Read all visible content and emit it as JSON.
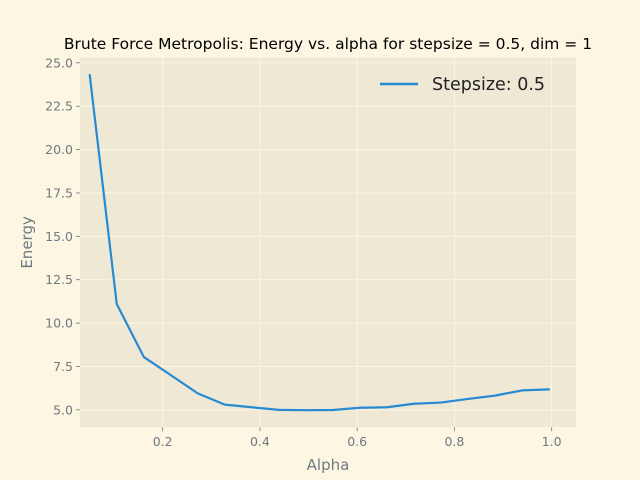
{
  "chart_data": {
    "type": "line",
    "title": "Brute Force Metropolis: Energy vs. alpha for stepsize = 0.5, dim = 1",
    "xlabel": "Alpha",
    "ylabel": "Energy",
    "xlim": [
      0.03,
      1.05
    ],
    "ylim": [
      4.0,
      25.3
    ],
    "xticks": [
      0.2,
      0.4,
      0.6,
      0.8,
      1.0
    ],
    "xtick_labels": [
      "0.2",
      "0.4",
      "0.6",
      "0.8",
      "1.0"
    ],
    "yticks": [
      5.0,
      7.5,
      10.0,
      12.5,
      15.0,
      17.5,
      20.0,
      22.5,
      25.0
    ],
    "ytick_labels": [
      "5.0",
      "7.5",
      "10.0",
      "12.5",
      "15.0",
      "17.5",
      "20.0",
      "22.5",
      "25.0"
    ],
    "grid": true,
    "legend_position": "top-right",
    "series": [
      {
        "name": "Stepsize: 0.5",
        "color": "#268bd2",
        "x": [
          0.05,
          0.1056,
          0.1611,
          0.2167,
          0.2722,
          0.3278,
          0.3833,
          0.4389,
          0.4944,
          0.55,
          0.6056,
          0.6611,
          0.7167,
          0.7722,
          0.8278,
          0.8833,
          0.9389,
          0.9944
        ],
        "y": [
          24.3,
          11.1,
          8.05,
          7.0,
          5.95,
          5.3,
          5.15,
          5.0,
          4.98,
          4.99,
          5.12,
          5.15,
          5.35,
          5.42,
          5.63,
          5.82,
          6.12,
          6.18
        ]
      }
    ]
  }
}
